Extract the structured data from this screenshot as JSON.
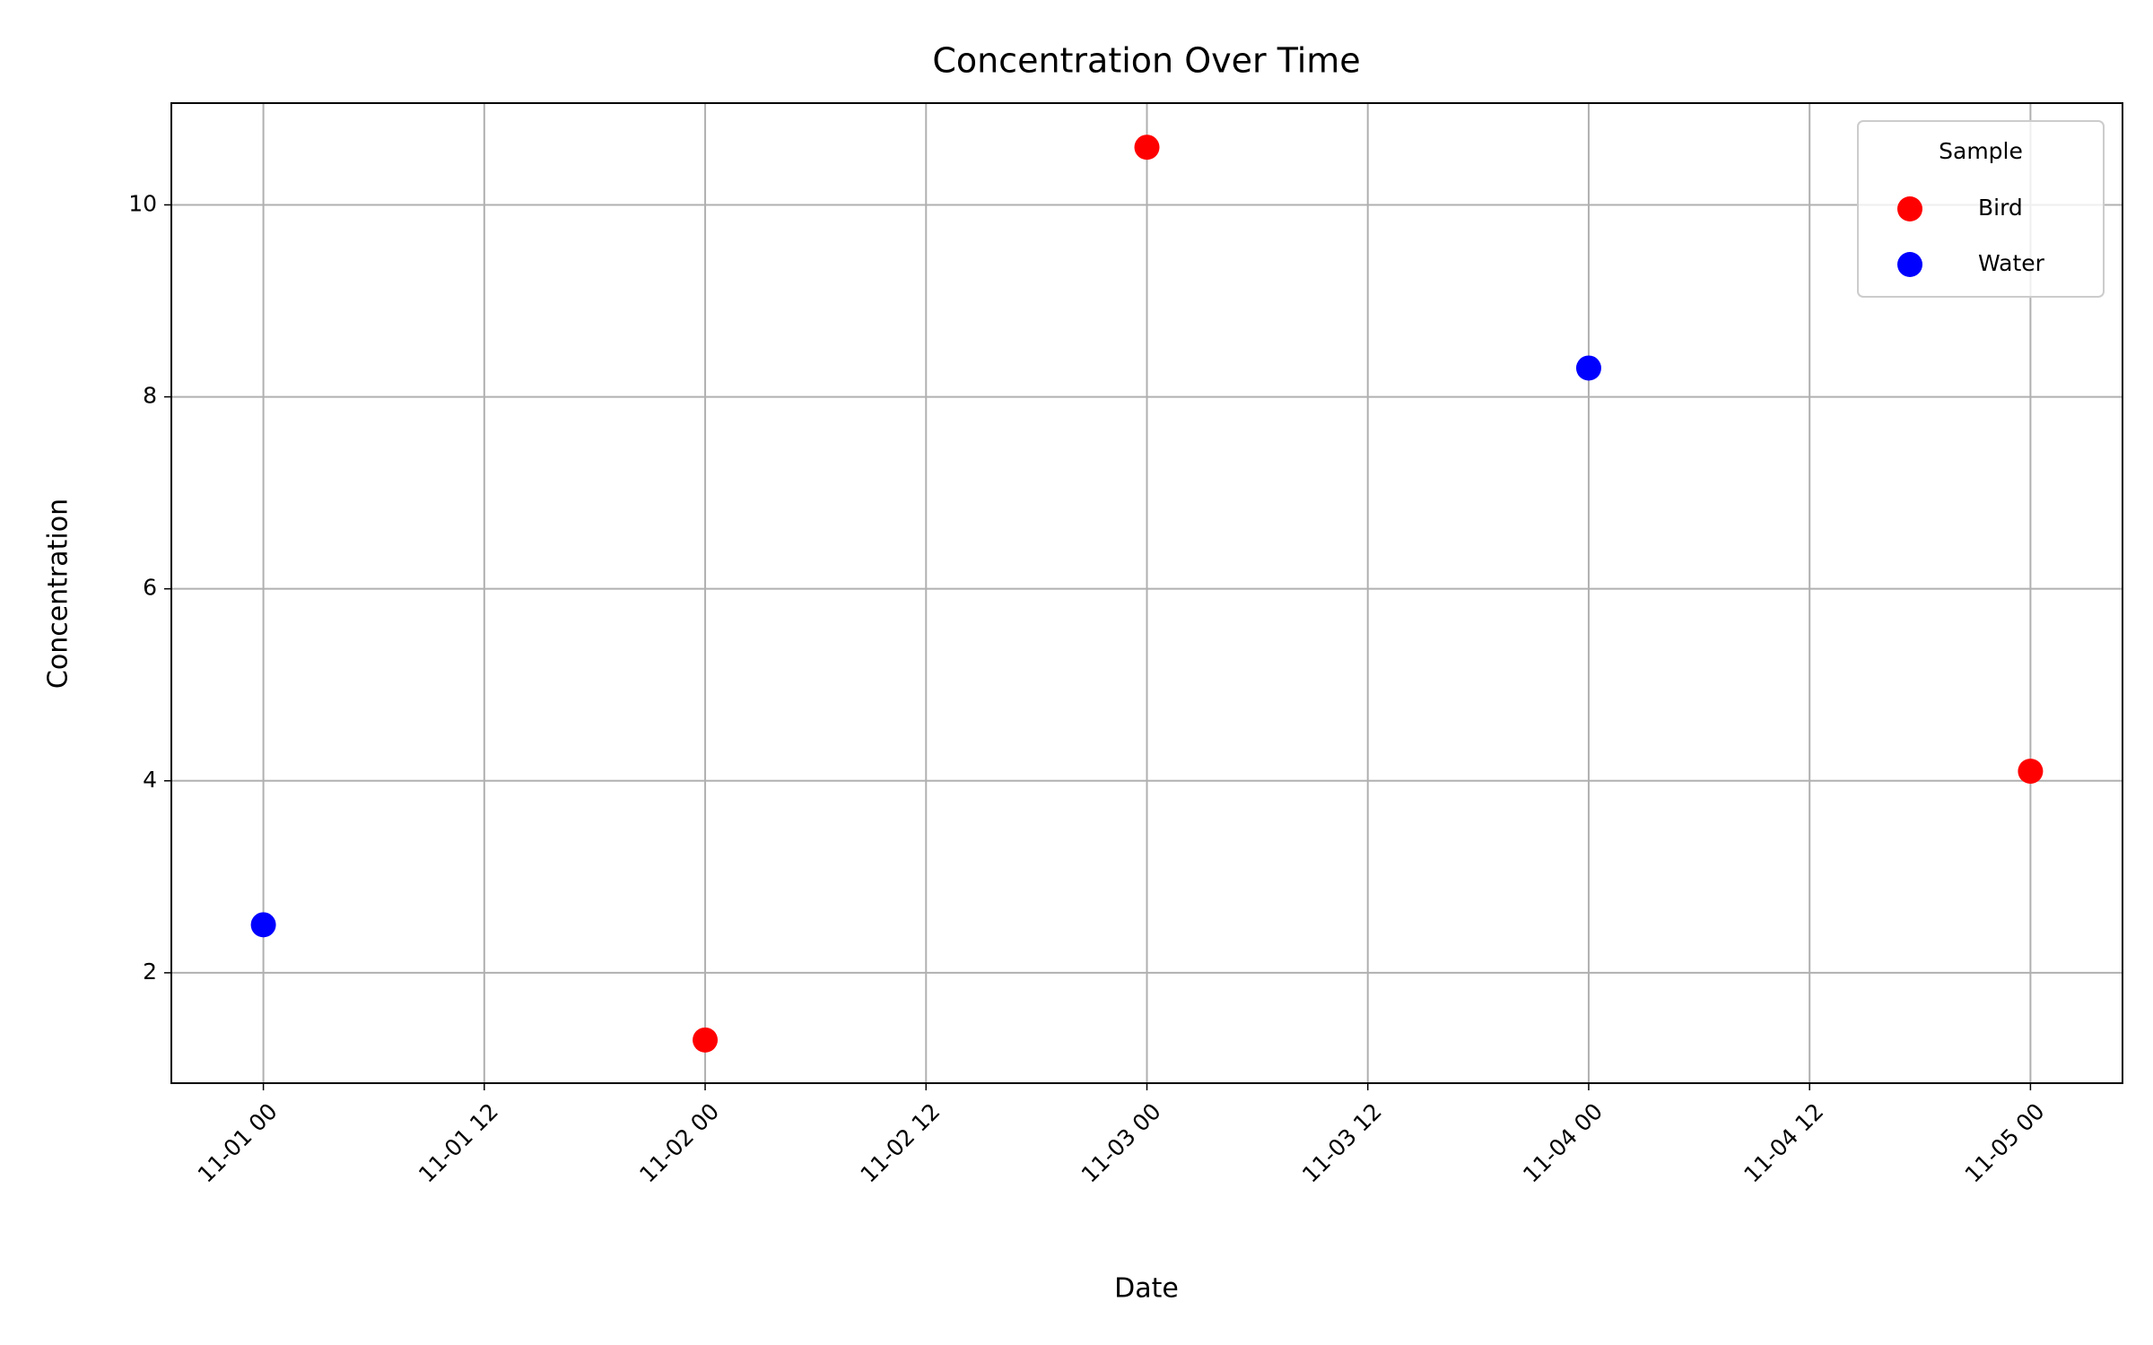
{
  "chart_data": {
    "type": "scatter",
    "title": "Concentration Over Time",
    "x_label": "Date",
    "y_label": "Concentration",
    "series": [
      {
        "name": "Bird",
        "color": "#ff0000",
        "x": [
          "11-02 00",
          "11-03 00",
          "11-05 00"
        ],
        "values": [
          1.3,
          10.6,
          4.1
        ]
      },
      {
        "name": "Water",
        "color": "#0000ff",
        "x": [
          "11-01 00",
          "11-04 00"
        ],
        "values": [
          2.5,
          8.3
        ]
      }
    ],
    "xlim": [
      "10-31 19",
      "11-05 05"
    ],
    "xticks": [
      "11-01 00",
      "11-01 12",
      "11-02 00",
      "11-02 12",
      "11-03 00",
      "11-03 12",
      "11-04 00",
      "11-04 12",
      "11-05 00"
    ],
    "ylim": [
      0.85,
      11.06
    ],
    "yticks": [
      2,
      4,
      6,
      8,
      10
    ],
    "grid": true,
    "legend_title": "Sample",
    "legend_position": "upper right"
  }
}
